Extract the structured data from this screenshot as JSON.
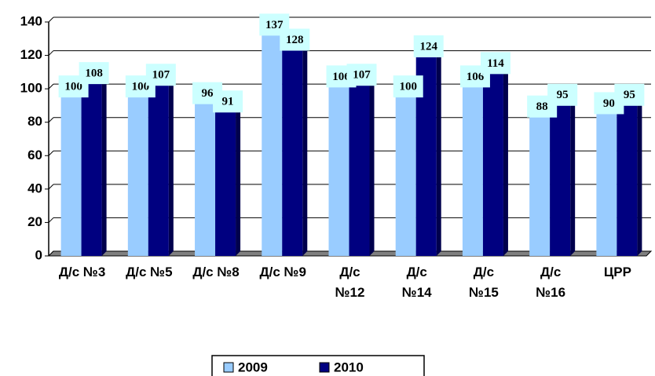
{
  "chart_data": {
    "type": "bar",
    "categories": [
      "Д/с №3",
      "Д/с №5",
      "Д/с №8",
      "Д/с №9",
      "Д/с №12",
      "Д/с №14",
      "Д/с №15",
      "Д/с №16",
      "ЦРР"
    ],
    "series": [
      {
        "name": "2009",
        "color": "#99ccff",
        "values": [
          100,
          100,
          96,
          137,
          106,
          100,
          106,
          88,
          90
        ]
      },
      {
        "name": "2010",
        "color": "#000080",
        "values": [
          108,
          107,
          91,
          128,
          107,
          124,
          114,
          95,
          95
        ]
      }
    ],
    "ylim": [
      0,
      140
    ],
    "yticks": [
      0,
      20,
      40,
      60,
      80,
      100,
      120,
      140
    ],
    "grid": true,
    "legend": "bottom"
  }
}
